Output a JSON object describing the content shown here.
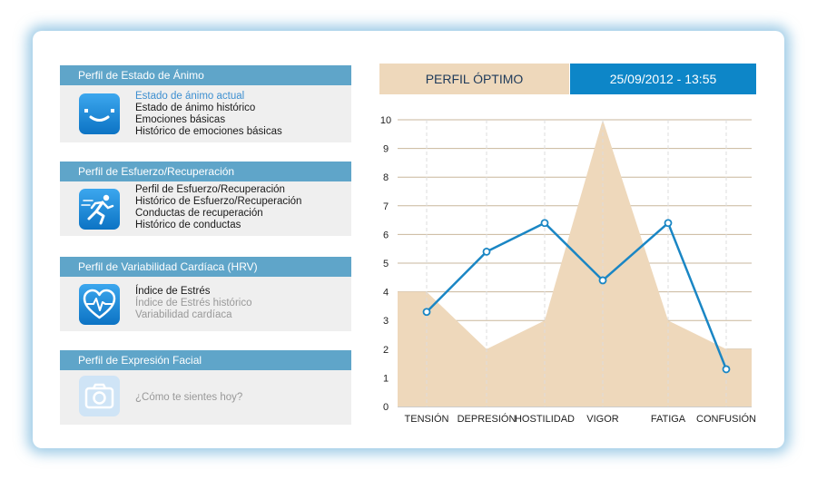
{
  "panels": [
    {
      "title": "Perfil de Estado de Ánimo",
      "icon": "smiley-face-icon",
      "items": [
        {
          "label": "Estado de ánimo actual",
          "state": "active"
        },
        {
          "label": "Estado de ánimo histórico",
          "state": "normal"
        },
        {
          "label": "Emociones básicas",
          "state": "normal"
        },
        {
          "label": "Histórico de emociones básicas",
          "state": "normal"
        }
      ]
    },
    {
      "title": "Perfil de Esfuerzo/Recuperación",
      "icon": "runner-icon",
      "items": [
        {
          "label": "Perfil de Esfuerzo/Recuperación",
          "state": "normal"
        },
        {
          "label": "Histórico de Esfuerzo/Recuperación",
          "state": "normal"
        },
        {
          "label": "Conductas de recuperación",
          "state": "normal"
        },
        {
          "label": "Histórico de conductas",
          "state": "normal"
        }
      ]
    },
    {
      "title": "Perfil de Variabilidad Cardíaca (HRV)",
      "icon": "heart-pulse-icon",
      "items": [
        {
          "label": "Índice de Estrés",
          "state": "normal"
        },
        {
          "label": "Índice de Estrés histórico",
          "state": "muted"
        },
        {
          "label": "Variabilidad cardíaca",
          "state": "muted"
        }
      ]
    },
    {
      "title": "Perfil de Expresión Facial",
      "icon": "camera-icon",
      "items": [
        {
          "label": "¿Cómo te sientes hoy?",
          "state": "muted"
        }
      ]
    }
  ],
  "chart_header": {
    "title": "PERFIL ÓPTIMO",
    "datetime": "25/09/2012 - 13:55"
  },
  "chart_data": {
    "type": "line",
    "categories": [
      "TENSIÓN",
      "DEPRESIÓN",
      "HOSTILIDAD",
      "VIGOR",
      "FATIGA",
      "CONFUSIÓN"
    ],
    "series": [
      {
        "values": [
          3.3,
          5.4,
          6.4,
          4.4,
          6.4,
          1.3
        ],
        "color": "#1a86c4",
        "style": "line-markers"
      },
      {
        "values": [
          4,
          2,
          3,
          10,
          3,
          2
        ],
        "color": "#eed8bb",
        "style": "area"
      }
    ],
    "ylim": [
      0,
      10
    ],
    "yticks": [
      "0",
      "1",
      "2",
      "3",
      "4",
      "5",
      "6",
      "7",
      "8",
      "9",
      "10"
    ],
    "grid": true
  },
  "colors": {
    "panel_header": "#5fa5c9",
    "panel_body": "#efefef",
    "accent_blue": "#0d86c8",
    "beige": "#eed8bb",
    "frame_glow": "#4fa0d2"
  }
}
